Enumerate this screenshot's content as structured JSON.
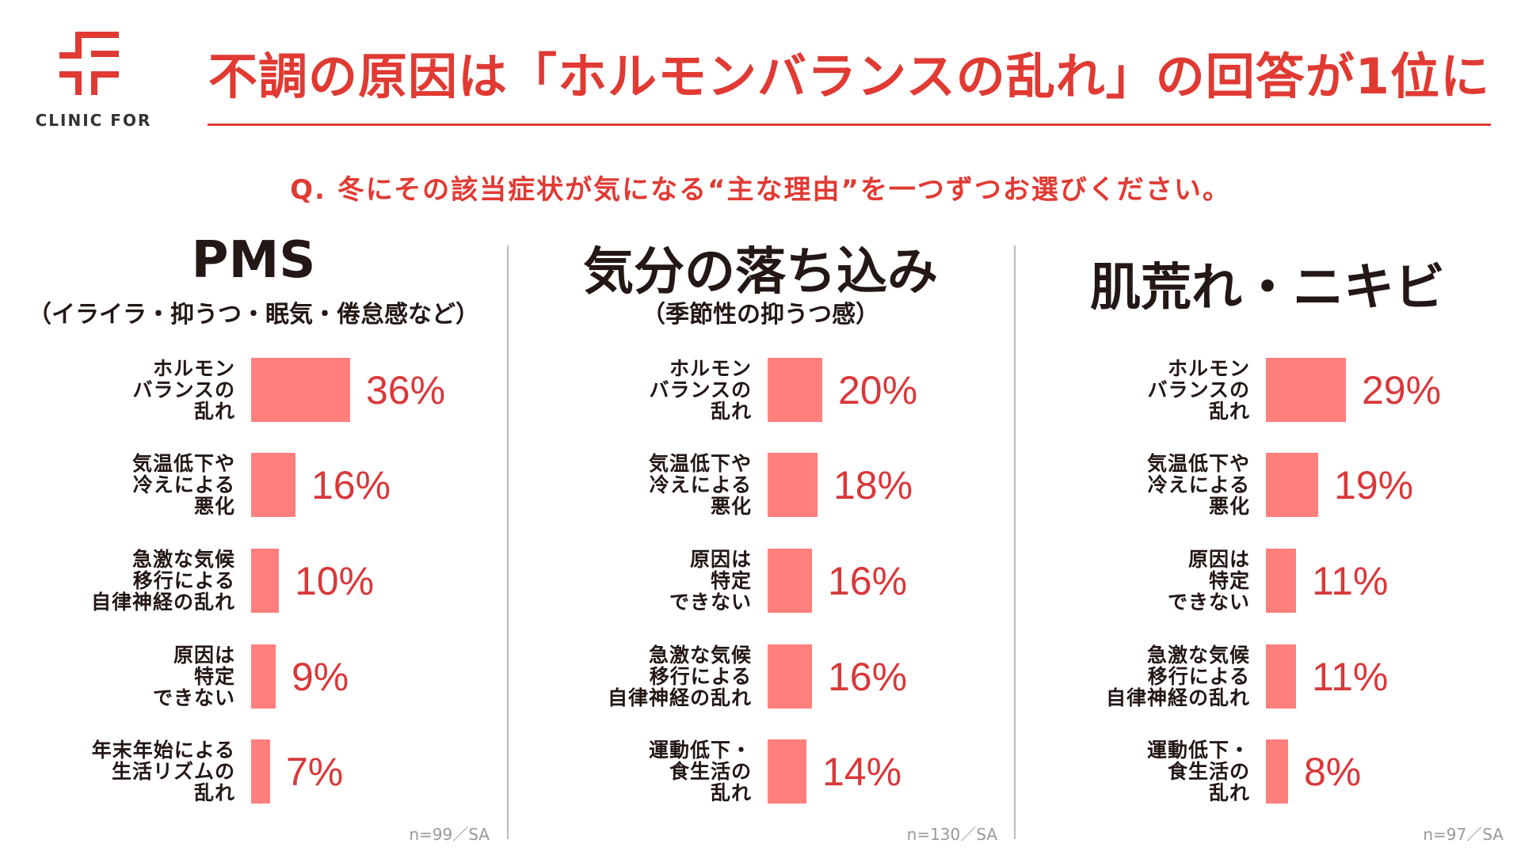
{
  "logo": {
    "text": "CLINIC FOR",
    "color": "#e03a33"
  },
  "header": {
    "title": "不調の原因は「ホルモンバランスの乱れ」の回答が1位に"
  },
  "question": "Q. 冬にその該当症状が気になる“主な理由”を一つずつお選びください。",
  "colors": {
    "accent": "#e03a33",
    "bar": "#ff7f7d",
    "percent": "#d9383a"
  },
  "chart_data": [
    {
      "type": "bar",
      "orientation": "horizontal",
      "title": "PMS",
      "subtitle": "（イライラ・抑うつ・眠気・倦怠感など）",
      "categories": [
        "ホルモン\nバランスの\n乱れ",
        "気温低下や\n冷えによる\n悪化",
        "急激な気候\n移行による\n自律神経の乱れ",
        "原因は\n特定\nできない",
        "年末年始による\n生活リズムの\n乱れ"
      ],
      "values": [
        36,
        16,
        10,
        9,
        7
      ],
      "labels": [
        "36%",
        "16%",
        "10%",
        "9%",
        "7%"
      ],
      "note": "n=99／SA"
    },
    {
      "type": "bar",
      "orientation": "horizontal",
      "title": "気分の落ち込み",
      "subtitle": "（季節性の抑うつ感）",
      "categories": [
        "ホルモン\nバランスの\n乱れ",
        "気温低下や\n冷えによる\n悪化",
        "原因は\n特定\nできない",
        "急激な気候\n移行による\n自律神経の乱れ",
        "運動低下・\n食生活の\n乱れ"
      ],
      "values": [
        20,
        18,
        16,
        16,
        14
      ],
      "labels": [
        "20%",
        "18%",
        "16%",
        "16%",
        "14%"
      ],
      "note": "n=130／SA"
    },
    {
      "type": "bar",
      "orientation": "horizontal",
      "title": "肌荒れ・ニキビ",
      "subtitle": "",
      "categories": [
        "ホルモン\nバランスの\n乱れ",
        "気温低下や\n冷えによる\n悪化",
        "原因は\n特定\nできない",
        "急激な気候\n移行による\n自律神経の乱れ",
        "運動低下・\n食生活の\n乱れ"
      ],
      "values": [
        29,
        19,
        11,
        11,
        8
      ],
      "labels": [
        "29%",
        "19%",
        "11%",
        "11%",
        "8%"
      ],
      "note": "n=97／SA"
    }
  ]
}
